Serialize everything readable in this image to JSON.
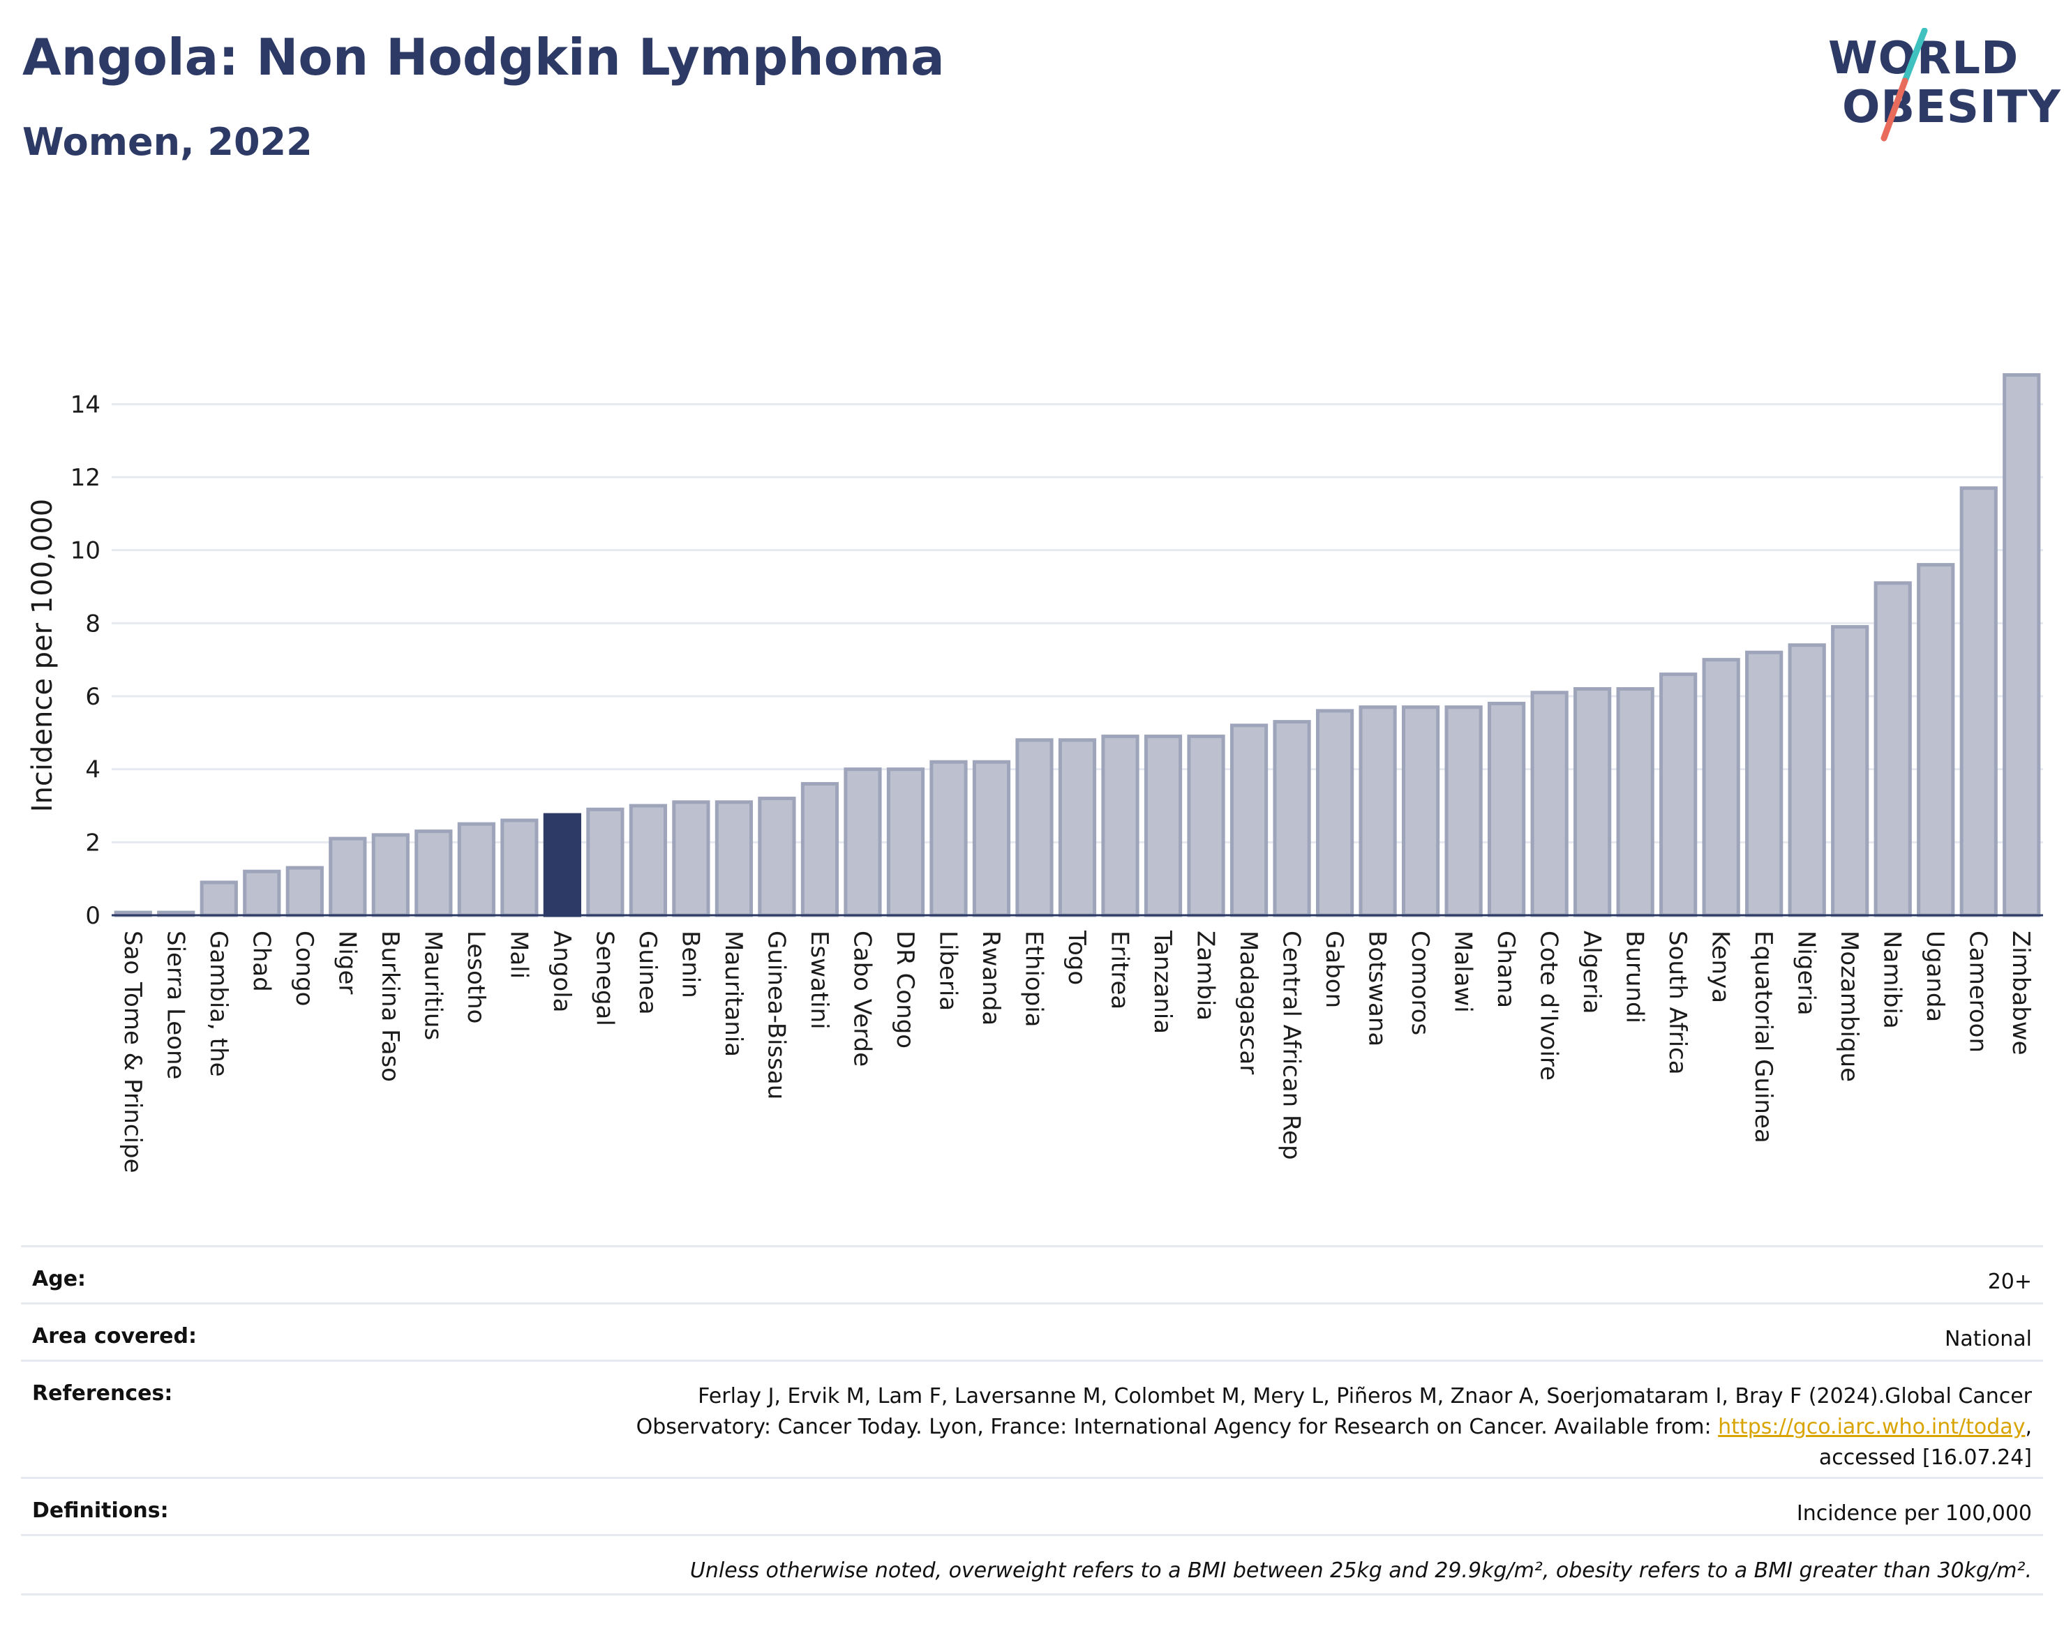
{
  "header": {
    "title": "Angola: Non Hodgkin Lymphoma",
    "subtitle": "Women, 2022"
  },
  "logo": {
    "line1": "WORLD",
    "line2": "OBESITY",
    "colors": {
      "text": "#2d3a66",
      "slash_teal": "#3fc1c0",
      "slash_coral": "#e96b5b"
    }
  },
  "chart_data": {
    "type": "bar",
    "title": "",
    "xlabel": "",
    "ylabel": "Incidence per 100,000",
    "ylim": [
      0,
      15
    ],
    "yticks": [
      0,
      2,
      4,
      6,
      8,
      10,
      12,
      14
    ],
    "grid": true,
    "highlight": "Angola",
    "colors": {
      "bar": "#bcc0cf",
      "bar_edge": "#9ea4ba",
      "highlight": "#2d3a66",
      "grid": "#e6e9f0"
    },
    "categories": [
      "Sao Tome & Principe",
      "Sierra Leone",
      "Gambia, the",
      "Chad",
      "Congo",
      "Niger",
      "Burkina Faso",
      "Mauritius",
      "Lesotho",
      "Mali",
      "Angola",
      "Senegal",
      "Guinea",
      "Benin",
      "Mauritania",
      "Guinea-Bissau",
      "Eswatini",
      "Cabo Verde",
      "DR Congo",
      "Liberia",
      "Rwanda",
      "Ethiopia",
      "Togo",
      "Eritrea",
      "Tanzania",
      "Zambia",
      "Madagascar",
      "Central African Rep",
      "Gabon",
      "Botswana",
      "Comoros",
      "Malawi",
      "Ghana",
      "Cote d'Ivoire",
      "Algeria",
      "Burundi",
      "South Africa",
      "Kenya",
      "Equatorial Guinea",
      "Nigeria",
      "Mozambique",
      "Namibia",
      "Uganda",
      "Cameroon",
      "Zimbabwe"
    ],
    "values": [
      0.05,
      0.05,
      0.9,
      1.2,
      1.3,
      2.1,
      2.2,
      2.3,
      2.5,
      2.6,
      2.75,
      2.9,
      3.0,
      3.1,
      3.1,
      3.2,
      3.6,
      4.0,
      4.0,
      4.2,
      4.2,
      4.8,
      4.8,
      4.9,
      4.9,
      4.9,
      5.2,
      5.3,
      5.6,
      5.7,
      5.7,
      5.7,
      5.8,
      6.1,
      6.2,
      6.2,
      6.6,
      7.0,
      7.2,
      7.4,
      7.9,
      9.1,
      9.6,
      11.7,
      14.8
    ]
  },
  "meta": {
    "age_label": "Age:",
    "age_value": "20+",
    "area_label": "Area covered:",
    "area_value": "National",
    "references_label": "References:",
    "references_line1": "Ferlay J, Ervik M, Lam F, Laversanne M, Colombet M, Mery L, Piñeros M, Znaor A, Soerjomataram I, Bray F (2024).Global Cancer",
    "references_line2_pre": "Observatory: Cancer Today. Lyon, France: International Agency for Research on Cancer. Available from: ",
    "references_link": "https://gco.iarc.who.int/today",
    "references_line2_post": ",",
    "references_line3": "accessed [16.07.24]",
    "definitions_label": "Definitions:",
    "definitions_value": "Incidence per 100,000",
    "note": "Unless otherwise noted, overweight refers to a BMI between 25kg and 29.9kg/m², obesity refers to a BMI greater than 30kg/m²."
  }
}
